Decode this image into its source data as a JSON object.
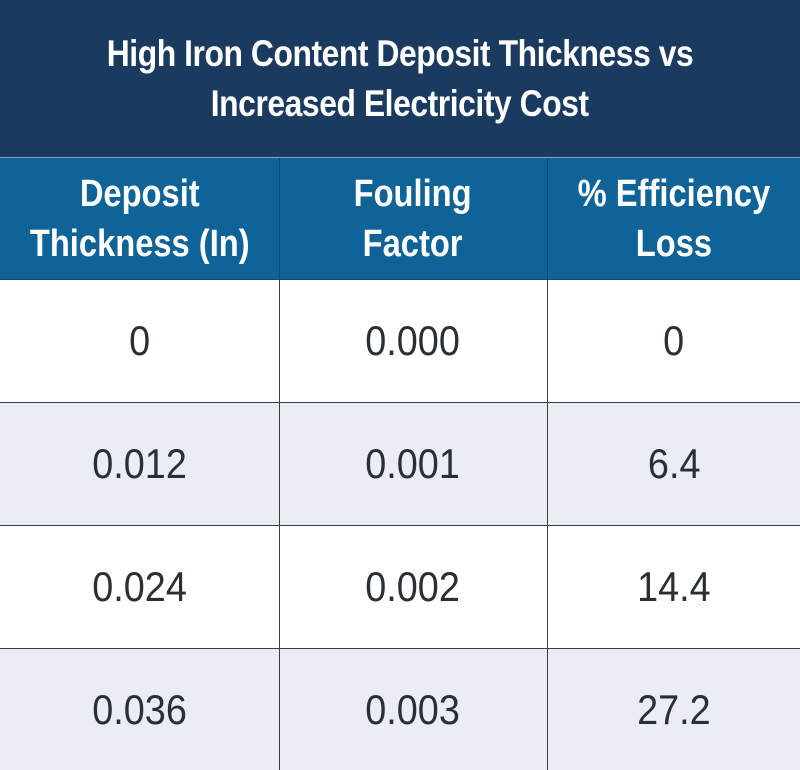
{
  "chart_data": {
    "type": "table",
    "title_lines": [
      "High Iron Content Deposit Thickness vs",
      "Increased Electricity Cost"
    ],
    "columns": [
      [
        "Deposit",
        "Thickness (In)"
      ],
      [
        "Fouling",
        "Factor"
      ],
      [
        "% Efficiency",
        "Loss"
      ]
    ],
    "rows": [
      [
        "0",
        "0.000",
        "0"
      ],
      [
        "0.012",
        "0.001",
        "6.4"
      ],
      [
        "0.024",
        "0.002",
        "14.4"
      ],
      [
        "0.036",
        "0.003",
        "27.2"
      ]
    ]
  },
  "colors": {
    "title_background": "#1b3a5f",
    "header_background": "#0f6396",
    "row_alt_background": "#eaeef4",
    "text": "#2a2f36"
  }
}
